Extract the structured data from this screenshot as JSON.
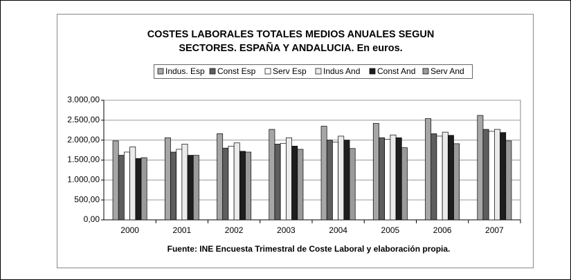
{
  "chart_data": {
    "type": "bar",
    "title": "COSTES LABORALES TOTALES MEDIOS ANUALES SEGUN SECTORES. ESPAÑA Y ANDALUCIA. En euros.",
    "x_label": "Fuente: INE Encuesta Trimestral de Coste Laboral y elaboración propia.",
    "categories": [
      "2000",
      "2001",
      "2002",
      "2003",
      "2004",
      "2005",
      "2006",
      "2007"
    ],
    "series": [
      {
        "name": "Indus. Esp",
        "color": "#a6a6a6",
        "values": [
          1980,
          2060,
          2160,
          2270,
          2350,
          2420,
          2540,
          2620
        ]
      },
      {
        "name": "Const Esp",
        "color": "#5e5e5e",
        "values": [
          1620,
          1700,
          1800,
          1900,
          2000,
          2060,
          2160,
          2270
        ]
      },
      {
        "name": "Serv Esp",
        "color": "#ffffff",
        "values": [
          1700,
          1770,
          1850,
          1920,
          1950,
          2020,
          2100,
          2220
        ]
      },
      {
        "name": "Indus And",
        "color": "#ebebeb",
        "values": [
          1830,
          1900,
          1930,
          2060,
          2100,
          2130,
          2200,
          2270
        ]
      },
      {
        "name": "Const And",
        "color": "#1e1e1e",
        "values": [
          1540,
          1620,
          1720,
          1850,
          2000,
          2060,
          2120,
          2190
        ]
      },
      {
        "name": "Serv And",
        "color": "#9a9a9a",
        "values": [
          1560,
          1620,
          1700,
          1770,
          1790,
          1810,
          1910,
          1980
        ]
      }
    ],
    "ylim": [
      0,
      3000
    ],
    "yticks": [
      {
        "value": 0,
        "label": "0,00"
      },
      {
        "value": 500,
        "label": "500,00"
      },
      {
        "value": 1000,
        "label": "1.000,00"
      },
      {
        "value": 1500,
        "label": "1.500,00"
      },
      {
        "value": 2000,
        "label": "2.000,00"
      },
      {
        "value": 2500,
        "label": "2.500,00"
      },
      {
        "value": 3000,
        "label": "3.000,00"
      }
    ],
    "grid": true,
    "legend": "top"
  }
}
